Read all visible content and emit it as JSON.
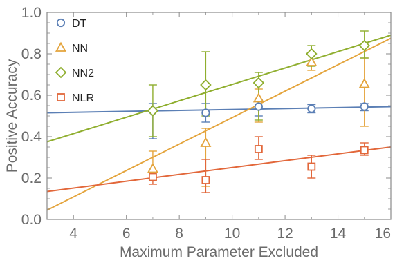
{
  "chart_data": {
    "type": "scatter",
    "title": "",
    "xlabel": "Maximum Parameter Excluded",
    "ylabel": "Positive Accuracy",
    "xlim": [
      3,
      16
    ],
    "ylim": [
      0,
      1
    ],
    "xticks": [
      4,
      6,
      8,
      10,
      12,
      14,
      16
    ],
    "yticks": [
      0.0,
      0.2,
      0.4,
      0.6,
      0.8,
      1.0
    ],
    "xtick_labels": [
      "4",
      "6",
      "8",
      "10",
      "12",
      "14",
      "16"
    ],
    "ytick_labels": [
      "0.0",
      "0.2",
      "0.4",
      "0.6",
      "0.8",
      "1.0"
    ],
    "grid": false,
    "legend_position": "top-left",
    "series": [
      {
        "name": "DT",
        "marker": "circle",
        "color": "#5b7fb5",
        "x": [
          7,
          9,
          11,
          13,
          15
        ],
        "y": [
          0.525,
          0.515,
          0.545,
          0.535,
          0.545
        ],
        "err_low": [
          0.39,
          0.47,
          0.5,
          0.515,
          0.525
        ],
        "err_high": [
          0.56,
          0.56,
          0.58,
          0.555,
          0.56
        ],
        "fit": {
          "x": [
            3,
            16
          ],
          "y": [
            0.515,
            0.545
          ]
        }
      },
      {
        "name": "NN",
        "marker": "triangle",
        "color": "#e4a43c",
        "x": [
          7,
          9,
          11,
          13,
          15
        ],
        "y": [
          0.245,
          0.37,
          0.585,
          0.76,
          0.655
        ],
        "err_low": [
          0.19,
          0.16,
          0.47,
          0.72,
          0.45
        ],
        "err_high": [
          0.33,
          0.44,
          0.63,
          0.8,
          0.78
        ],
        "fit": {
          "x": [
            3,
            16
          ],
          "y": [
            0.045,
            0.875
          ]
        }
      },
      {
        "name": "NN2",
        "marker": "diamond",
        "color": "#8fae2e",
        "x": [
          7,
          9,
          11,
          13,
          15
        ],
        "y": [
          0.525,
          0.65,
          0.66,
          0.8,
          0.84
        ],
        "err_low": [
          0.4,
          0.5,
          0.48,
          0.74,
          0.78
        ],
        "err_high": [
          0.65,
          0.81,
          0.71,
          0.84,
          0.91
        ],
        "fit": {
          "x": [
            3,
            16
          ],
          "y": [
            0.375,
            0.89
          ]
        }
      },
      {
        "name": "NLR",
        "marker": "square",
        "color": "#e2673a",
        "x": [
          7,
          9,
          11,
          13,
          15
        ],
        "y": [
          0.205,
          0.19,
          0.34,
          0.255,
          0.335
        ],
        "err_low": [
          0.17,
          0.13,
          0.29,
          0.2,
          0.31
        ],
        "err_high": [
          0.235,
          0.29,
          0.4,
          0.31,
          0.37
        ],
        "fit": {
          "x": [
            3,
            16
          ],
          "y": [
            0.135,
            0.35
          ]
        }
      }
    ]
  }
}
